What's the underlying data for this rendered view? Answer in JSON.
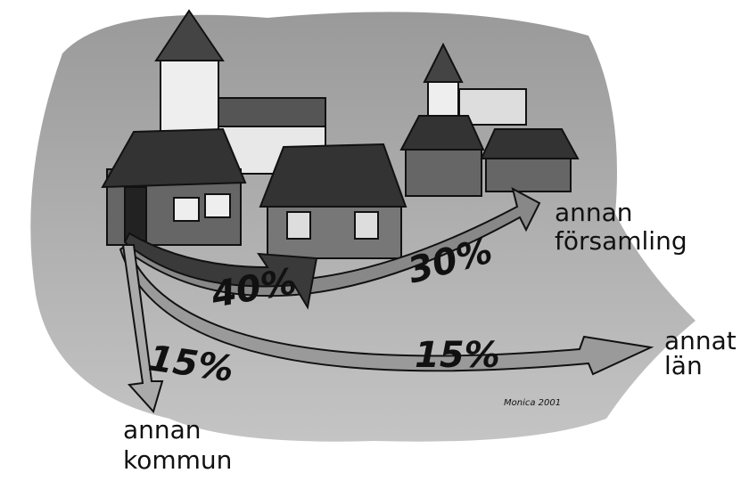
{
  "flows": [
    {
      "share": "40%"
    },
    {
      "share": "30%"
    },
    {
      "share": "15%"
    },
    {
      "share": "15%"
    }
  ],
  "destinations": [
    {
      "lines": [
        "annan",
        "församling"
      ]
    },
    {
      "lines": [
        "annat",
        "län"
      ]
    },
    {
      "lines": [
        "annan",
        "kommun"
      ]
    }
  ],
  "signature": "Monica 2001"
}
